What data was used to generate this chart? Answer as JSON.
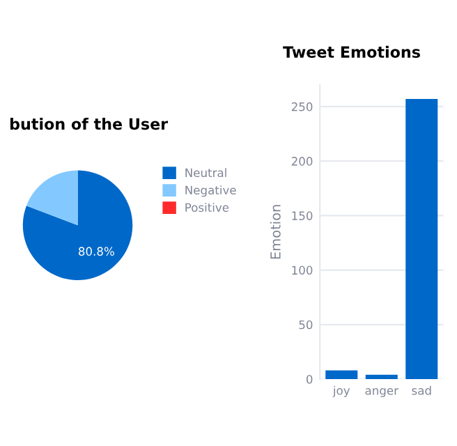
{
  "chart_data": [
    {
      "type": "pie",
      "title": "bution of the User",
      "categories": [
        "Neutral",
        "Negative",
        "Positive"
      ],
      "values": [
        80.8,
        19.2,
        0
      ],
      "colors": [
        "#0068c9",
        "#83c9ff",
        "#ff2b2b"
      ],
      "value_labels": [
        "80.8%",
        null,
        null
      ],
      "legend": "right"
    },
    {
      "type": "bar",
      "title": "Tweet Emotions",
      "ylabel": "Emotion",
      "categories": [
        "joy",
        "anger",
        "sad"
      ],
      "values": [
        8,
        4,
        257
      ],
      "color": "#0068c9",
      "ylim": [
        0,
        270
      ],
      "yticks": [
        0,
        50,
        100,
        150,
        200,
        250
      ],
      "grid": "y"
    }
  ]
}
